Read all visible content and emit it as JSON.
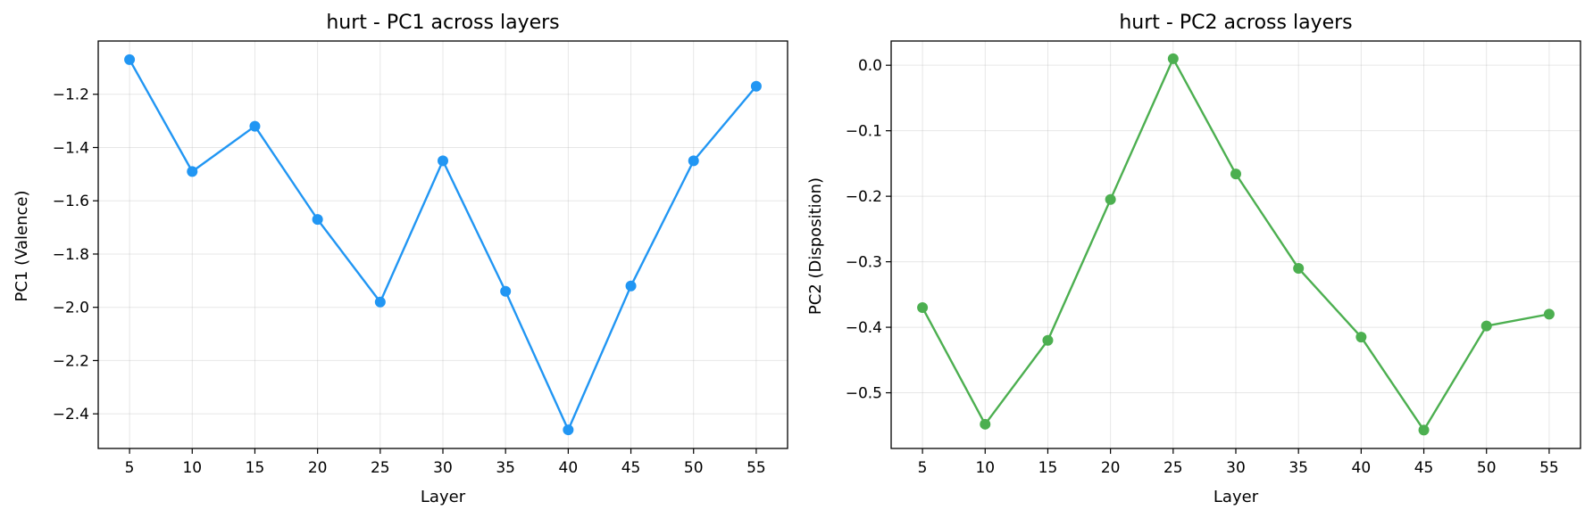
{
  "chart_data": [
    {
      "type": "line",
      "title": "hurt - PC1 across layers",
      "xlabel": "Layer",
      "ylabel": "PC1 (Valence)",
      "x": [
        5,
        10,
        15,
        20,
        25,
        30,
        35,
        40,
        45,
        50,
        55
      ],
      "series": [
        {
          "values": [
            -1.07,
            -1.49,
            -1.32,
            -1.67,
            -1.98,
            -1.45,
            -1.94,
            -2.46,
            -1.92,
            -1.45,
            -1.17
          ],
          "color": "#2196f3"
        }
      ],
      "xticks": [
        "5",
        "10",
        "15",
        "20",
        "25",
        "30",
        "35",
        "40",
        "45",
        "50",
        "55"
      ],
      "yticks": [
        -2.4,
        -2.2,
        -2.0,
        -1.8,
        -1.6,
        -1.4,
        -1.2
      ],
      "ytick_labels": [
        "−2.4",
        "−2.2",
        "−2.0",
        "−1.8",
        "−1.6",
        "−1.4",
        "−1.2"
      ],
      "xlim": [
        2.5,
        57.5
      ],
      "ylim": [
        -2.53,
        -1.0
      ],
      "grid": true
    },
    {
      "type": "line",
      "title": "hurt - PC2 across layers",
      "xlabel": "Layer",
      "ylabel": "PC2 (Disposition)",
      "x": [
        5,
        10,
        15,
        20,
        25,
        30,
        35,
        40,
        45,
        50,
        55
      ],
      "series": [
        {
          "values": [
            -0.37,
            -0.548,
            -0.42,
            -0.205,
            0.01,
            -0.166,
            -0.31,
            -0.415,
            -0.557,
            -0.398,
            -0.38
          ],
          "color": "#4caf50"
        }
      ],
      "xticks": [
        "5",
        "10",
        "15",
        "20",
        "25",
        "30",
        "35",
        "40",
        "45",
        "50",
        "55"
      ],
      "yticks": [
        -0.5,
        -0.4,
        -0.3,
        -0.2,
        -0.1,
        0.0
      ],
      "ytick_labels": [
        "−0.5",
        "−0.4",
        "−0.3",
        "−0.2",
        "−0.1",
        "0.0"
      ],
      "xlim": [
        2.5,
        57.5
      ],
      "ylim": [
        -0.585,
        0.037
      ],
      "grid": true
    }
  ]
}
